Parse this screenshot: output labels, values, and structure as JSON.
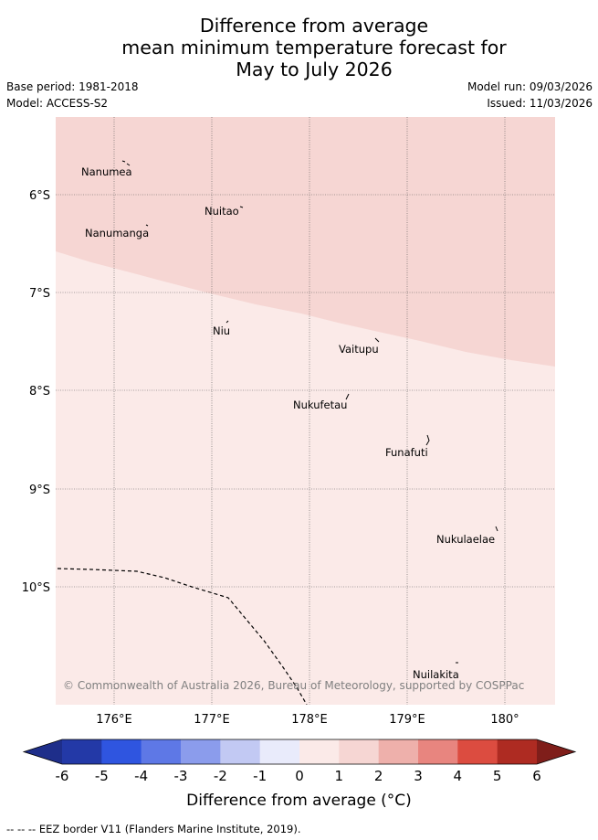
{
  "header": {
    "title_line1": "Difference from average",
    "title_line2": "mean minimum temperature forecast for",
    "title_line3": "May to July 2026",
    "base_period": "Base period: 1981-2018",
    "model": "Model: ACCESS-S2",
    "model_run": "Model run: 09/03/2026",
    "issued": "Issued: 11/03/2026"
  },
  "map": {
    "lon_ticks": [
      "176°E",
      "177°E",
      "178°E",
      "179°E",
      "180°"
    ],
    "lat_ticks": [
      "6°S",
      "7°S",
      "8°S",
      "9°S",
      "10°S"
    ],
    "places": [
      {
        "name": "Nanumea",
        "lon": 176.13,
        "lat": -5.67
      },
      {
        "name": "Nuitao",
        "lon": 177.33,
        "lat": -6.11
      },
      {
        "name": "Nanumanga",
        "lon": 176.32,
        "lat": -6.29
      },
      {
        "name": "Niu",
        "lon": 177.17,
        "lat": -7.29
      },
      {
        "name": "Vaitupu",
        "lon": 178.68,
        "lat": -7.47
      },
      {
        "name": "Nukufetau",
        "lon": 178.38,
        "lat": -8.03
      },
      {
        "name": "Funafuti",
        "lon": 179.2,
        "lat": -8.52
      },
      {
        "name": "Nukulaelae",
        "lon": 179.85,
        "lat": -9.38
      },
      {
        "name": "Nuilakita",
        "lon": 179.48,
        "lat": -10.78
      }
    ],
    "copyright": "© Commonwealth of Australia 2026, Bureau of Meteorology, supported by COSPPac",
    "colors": {
      "zone_1_2": "#f6d6d3",
      "zone_0_1": "#fbeae8"
    }
  },
  "colorbar": {
    "ticks": [
      "-6",
      "-5",
      "-4",
      "-3",
      "-2",
      "-1",
      "0",
      "1",
      "2",
      "3",
      "4",
      "5",
      "6"
    ],
    "colors": [
      "#2339a7",
      "#2f55e0",
      "#5e78e6",
      "#8b9cec",
      "#c2c9f3",
      "#e9ebfb",
      "#fbeae8",
      "#f6d6d3",
      "#eeb0ab",
      "#e8857f",
      "#dc4c40",
      "#ae2b22"
    ],
    "under_color": "#1e2e8a",
    "over_color": "#7f1e1a",
    "title": "Difference from average (°C)"
  },
  "footer": {
    "legend": "-- -- -- EEZ border V11 (Flanders Marine Institute, 2019)."
  }
}
